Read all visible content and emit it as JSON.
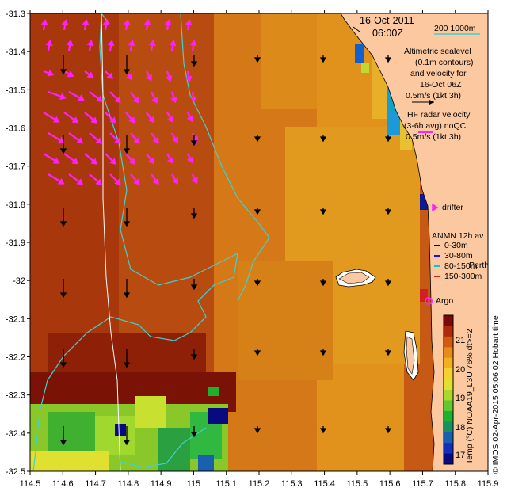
{
  "title": {
    "date": "16-Oct-2011",
    "time": "06:00Z"
  },
  "scale_bar": {
    "label": "200  1000m"
  },
  "altimetric_text": [
    "Altimetric sealevel",
    "(0.1m contours)",
    "and velocity for",
    "16-Oct 06Z",
    "0.5m/s (1kt 3h)"
  ],
  "hf_radar_text": [
    "HF radar velocity",
    "(3-6h avg) noQC",
    "0.5m/s (1kt 3h)"
  ],
  "drifter_label": "drifter",
  "anmn": {
    "title": "ANMN 12h av",
    "items": [
      {
        "label": "0-30m",
        "color": "#000000"
      },
      {
        "label": "30-80m",
        "color": "#1010ff"
      },
      {
        "label": "80-150m",
        "color": "#00c8d8"
      },
      {
        "label": "150-300m",
        "color": "#e02020"
      }
    ],
    "overlap_text": "Perth"
  },
  "argo_label": "Argo",
  "x_ticks": [
    "114.5",
    "114.6",
    "114.7",
    "114.8",
    "114.9",
    "115",
    "115.1",
    "115.2",
    "115.3",
    "115.4",
    "115.5",
    "115.6",
    "115.7",
    "115.8",
    "115.9"
  ],
  "y_ticks": [
    "-31.3",
    "-31.4",
    "-31.5",
    "-31.6",
    "-31.7",
    "-31.8",
    "-31.9",
    "-32",
    "-32.1",
    "-32.2",
    "-32.3",
    "-32.4",
    "-32.5"
  ],
  "colorbar": {
    "ticks": [
      "21",
      "20",
      "19",
      "18",
      "17"
    ],
    "label": "Temp (°C) NOAA19_L3U 76% dt>=2",
    "colors": [
      "#7a0a0a",
      "#b02a0a",
      "#d25a10",
      "#e88a1a",
      "#f0b020",
      "#f4d030",
      "#e0e030",
      "#a8d82a",
      "#60c830",
      "#20b030",
      "#1a9060",
      "#1a60b0",
      "#1030c0",
      "#0a0a80"
    ]
  },
  "credit": "© IMOS 02-Apr-2015 05:06:02 Hobart time"
}
